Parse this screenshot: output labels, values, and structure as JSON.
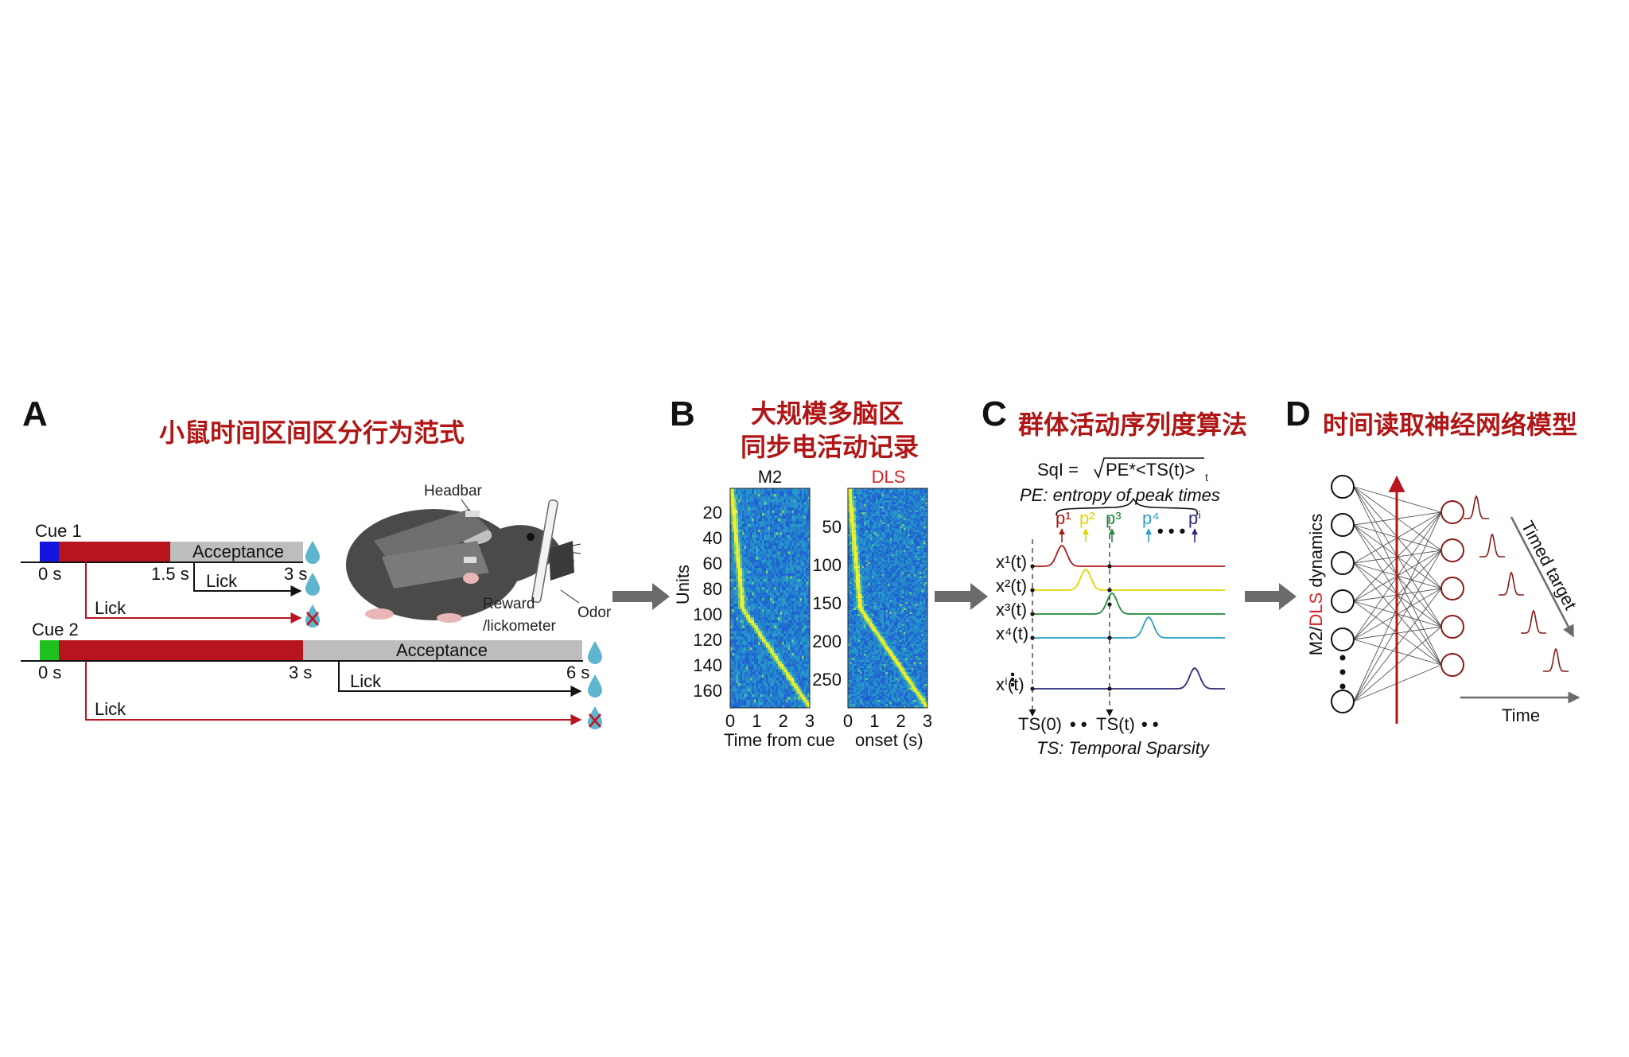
{
  "panels": {
    "A": {
      "letter": "A",
      "title": "小鼠时间区间区分行为范式",
      "cue1": {
        "label": "Cue 1",
        "color": "#1515e0",
        "t0": "0 s",
        "t_cue_end": "1.5 s",
        "t_end": "3 s",
        "acceptance": "Acceptance",
        "lick_ok": "Lick",
        "lick_early": "Lick"
      },
      "cue2": {
        "label": "Cue 2",
        "color": "#21c021",
        "t0": "0 s",
        "t_cue_end": "3 s",
        "t_end": "6 s",
        "acceptance": "Acceptance",
        "lick_ok": "Lick",
        "lick_early": "Lick"
      },
      "mouse": {
        "headbar": "Headbar",
        "reward_1": "Reward",
        "reward_2": "/lickometer",
        "odor": "Odor"
      }
    },
    "B": {
      "letter": "B",
      "title_1": "大规模多脑区",
      "title_2": "同步电活动记录",
      "m2_label": "M2",
      "dls_label": "DLS",
      "ylabel": "Units",
      "m2_ticks": [
        "20",
        "40",
        "60",
        "80",
        "100",
        "120",
        "140",
        "160"
      ],
      "dls_ticks": [
        "50",
        "100",
        "150",
        "200",
        "250"
      ],
      "x_ticks": [
        "0",
        "1",
        "2",
        "3"
      ],
      "xlabel_1": "Time from cue",
      "xlabel_2": "onset (s)"
    },
    "C": {
      "letter": "C",
      "title": "群体活动序列度算法",
      "formula_lhs": "SqI =",
      "formula_rhs": "PE*<TS(t)>",
      "formula_sub": "t",
      "pe_label": "PE: entropy of peak times",
      "peaks": [
        "p¹",
        "p²",
        "p³",
        "p⁴",
        "pⁱ"
      ],
      "traces": [
        "x¹(t)",
        "x²(t)",
        "x³(t)",
        "x⁴(t)",
        "xⁱ(t)"
      ],
      "ts_0": "TS(0)",
      "ts_t": "TS(t)",
      "ts_label": "TS: Temporal Sparsity"
    },
    "D": {
      "letter": "D",
      "title": "时间读取神经网络模型",
      "y_label_a": "M2/",
      "y_label_b": "DLS",
      "y_label_c": " dynamics",
      "timed_target": "Timed target",
      "time_label": "Time"
    }
  },
  "colors": {
    "title_red": "#b01616",
    "bar_red": "#b8141e",
    "acceptance_gray": "#bdbdbd",
    "arrow_gray": "#6b6b6b",
    "drop_blue": "#5fb4cf",
    "trace_1": "#b01616",
    "trace_2": "#e6d400",
    "trace_3": "#1e8a3a",
    "trace_4": "#2c9fc9",
    "trace_i": "#2b2b7a"
  }
}
